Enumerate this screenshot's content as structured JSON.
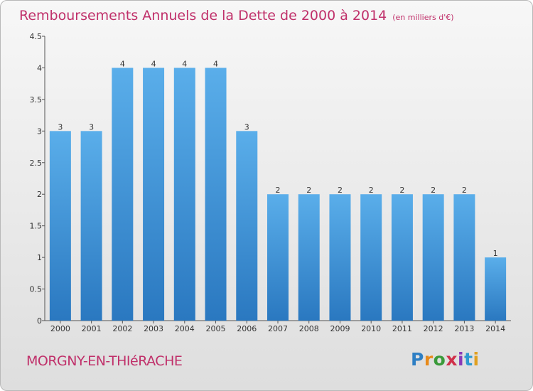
{
  "title": "Remboursements Annuels de la Dette de 2000 à 2014",
  "unit": "(en milliers d'€)",
  "city": "MORGNY-EN-THIéRACHE",
  "logo": {
    "letters": [
      "P",
      "r",
      "o",
      "x",
      "i",
      "t",
      "i"
    ],
    "colors": [
      "#2e7fc4",
      "#e88a1a",
      "#3a9a3a",
      "#d0304a",
      "#8a3ab8",
      "#2e9ad0",
      "#e0a020"
    ]
  },
  "chart_data": {
    "type": "bar",
    "categories": [
      "2000",
      "2001",
      "2002",
      "2003",
      "2004",
      "2005",
      "2006",
      "2007",
      "2008",
      "2009",
      "2010",
      "2011",
      "2012",
      "2013",
      "2014"
    ],
    "values": [
      3,
      3,
      4,
      4,
      4,
      4,
      3,
      2,
      2,
      2,
      2,
      2,
      2,
      2,
      1
    ],
    "data_labels": [
      "3",
      "3",
      "4",
      "4",
      "4",
      "4",
      "3",
      "2",
      "2",
      "2",
      "2",
      "2",
      "2",
      "2",
      "1"
    ],
    "yticks": [
      0,
      0.5,
      1,
      1.5,
      2,
      2.5,
      3,
      3.5,
      4,
      4.5
    ],
    "ytick_labels": [
      "0",
      "0.5",
      "1",
      "1.5",
      "2",
      "2.5",
      "3",
      "3.5",
      "4",
      "4.5"
    ],
    "ylim": [
      0,
      4.5
    ],
    "grid": false,
    "bar_color": "#4a9ee0"
  }
}
